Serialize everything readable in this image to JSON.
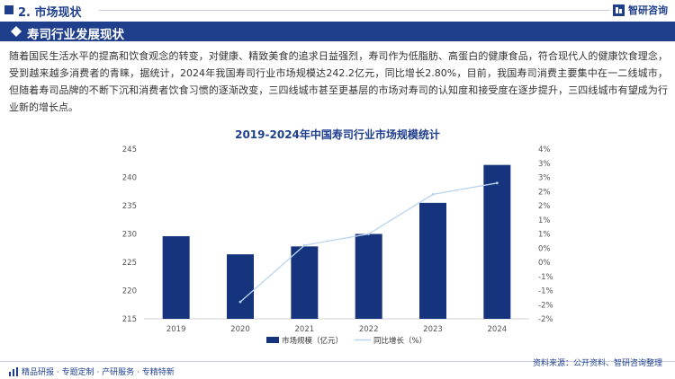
{
  "header": {
    "section_title": "2. 市场现状",
    "logo_text": "智研咨询"
  },
  "banner": {
    "title": "寿司行业发展现状"
  },
  "paragraph": "随着国民生活水平的提高和饮食观念的转变，对健康、精致美食的追求日益强烈，寿司作为低脂肪、高蛋白的健康食品，符合现代人的健康饮食理念，受到越来越多消费者的青睐，据统计，2024年我国寿司行业市场规模达242.2亿元，同比增长2.80%，目前，我国寿司消费主要集中在一二线城市，但随着寿司品牌的不断下沉和消费者饮食习惯的逐渐改变，三四线城市甚至更基层的市场对寿司的认知度和接受度在逐步提升，三四线城市有望成为行业新的增长点。",
  "footer": {
    "left_text": "精品研报 · 专题定制 · 产研服务 · 专精特新",
    "source_text": "资料来源：公开资料、智研咨询整理"
  },
  "colors": {
    "brand": "#1f3f8c",
    "bar": "#15347d",
    "line": "#b9d4ef"
  },
  "chart_data": {
    "type": "bar",
    "title": "2019-2024年中国寿司行业市场规模统计",
    "categories": [
      "2019",
      "2020",
      "2021",
      "2022",
      "2023",
      "2024"
    ],
    "series": [
      {
        "name": "市场规模（亿元）",
        "type": "bar",
        "axis": "left",
        "values": [
          229.6,
          226.4,
          227.8,
          230.0,
          235.5,
          242.2
        ]
      },
      {
        "name": "同比增长（%）",
        "type": "line",
        "axis": "right",
        "values": [
          null,
          -1.4,
          0.6,
          1.0,
          2.4,
          2.8
        ]
      }
    ],
    "y_left": {
      "min": 215,
      "max": 245,
      "ticks": [
        "215",
        "220",
        "225",
        "230",
        "235",
        "240",
        "245"
      ]
    },
    "y_right": {
      "min": -2,
      "max": 4,
      "ticks": [
        "-2%",
        "-2%",
        "-1%",
        "-1%",
        "0%",
        "0%",
        "1%",
        "1%",
        "2%",
        "2%",
        "3%",
        "3%",
        "4%"
      ]
    },
    "grid": false,
    "legend": "bottom-center"
  }
}
